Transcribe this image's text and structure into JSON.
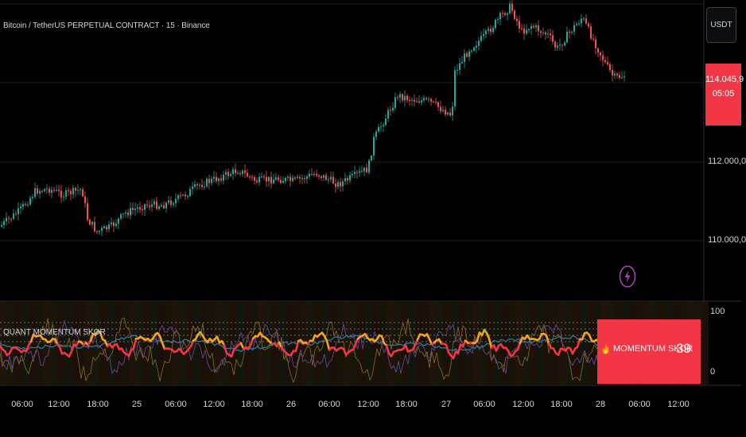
{
  "header": {
    "symbol": "Bitcoin / TetherUS PERPETUAL CONTRACT · 15 · Binance"
  },
  "toolbar": {
    "currency": "USDT"
  },
  "price_axis": {
    "labels": [
      "112.000,0",
      "110.000,0"
    ],
    "current_price": "114.045,9",
    "countdown": "05:05"
  },
  "indicator": {
    "title": "QUANT MOMENTUM SKOR",
    "scale_top": "100",
    "scale_bottom": "0",
    "panel_label": "MOMENTUM SKOR",
    "panel_value": "39"
  },
  "time_axis": [
    "06:00",
    "12:00",
    "18:00",
    "25",
    "06:00",
    "12:00",
    "18:00",
    "26",
    "06:00",
    "12:00",
    "18:00",
    "27",
    "06:00",
    "12:00",
    "18:00",
    "28",
    "06:00",
    "12:00"
  ],
  "icons": {
    "alert": "lightning-alert-icon",
    "flame": "flame-icon"
  },
  "colors": {
    "up": "#26a69a",
    "down": "#ef5350",
    "accent": "#f23645",
    "momentum": "#f7a21b",
    "alert": "#9c27b0"
  }
}
